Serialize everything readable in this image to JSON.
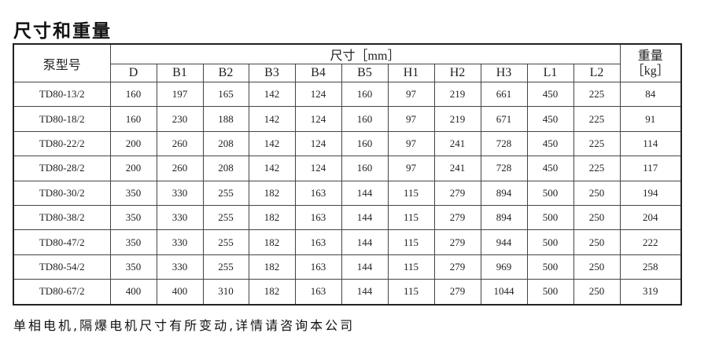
{
  "title": "尺寸和重量",
  "table": {
    "model_header": "泵型号",
    "dims_header": "尺寸［mm］",
    "weight_header_line1": "重量",
    "weight_header_line2": "［kg］",
    "columns": [
      "D",
      "B1",
      "B2",
      "B3",
      "B4",
      "B5",
      "H1",
      "H2",
      "H3",
      "L1",
      "L2"
    ],
    "rows": [
      {
        "model": "TD80-13/2",
        "values": [
          "160",
          "197",
          "165",
          "142",
          "124",
          "160",
          "97",
          "219",
          "661",
          "450",
          "225"
        ],
        "weight": "84"
      },
      {
        "model": "TD80-18/2",
        "values": [
          "160",
          "230",
          "188",
          "142",
          "124",
          "160",
          "97",
          "219",
          "671",
          "450",
          "225"
        ],
        "weight": "91"
      },
      {
        "model": "TD80-22/2",
        "values": [
          "200",
          "260",
          "208",
          "142",
          "124",
          "160",
          "97",
          "241",
          "728",
          "450",
          "225"
        ],
        "weight": "114"
      },
      {
        "model": "TD80-28/2",
        "values": [
          "200",
          "260",
          "208",
          "142",
          "124",
          "160",
          "97",
          "241",
          "728",
          "450",
          "225"
        ],
        "weight": "117"
      },
      {
        "model": "TD80-30/2",
        "values": [
          "350",
          "330",
          "255",
          "182",
          "163",
          "144",
          "115",
          "279",
          "894",
          "500",
          "250"
        ],
        "weight": "194"
      },
      {
        "model": "TD80-38/2",
        "values": [
          "350",
          "330",
          "255",
          "182",
          "163",
          "144",
          "115",
          "279",
          "894",
          "500",
          "250"
        ],
        "weight": "204"
      },
      {
        "model": "TD80-47/2",
        "values": [
          "350",
          "330",
          "255",
          "182",
          "163",
          "144",
          "115",
          "279",
          "944",
          "500",
          "250"
        ],
        "weight": "222"
      },
      {
        "model": "TD80-54/2",
        "values": [
          "350",
          "330",
          "255",
          "182",
          "163",
          "144",
          "115",
          "279",
          "969",
          "500",
          "250"
        ],
        "weight": "258"
      },
      {
        "model": "TD80-67/2",
        "values": [
          "400",
          "400",
          "310",
          "182",
          "163",
          "144",
          "115",
          "279",
          "1044",
          "500",
          "250"
        ],
        "weight": "319"
      }
    ]
  },
  "footer": "单相电机,隔爆电机尺寸有所变动,详情请咨询本公司"
}
